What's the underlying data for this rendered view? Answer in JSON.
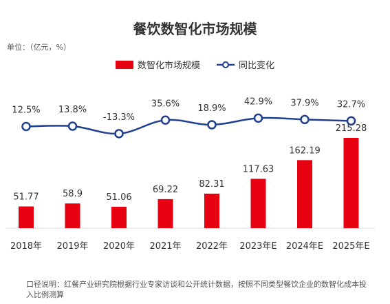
{
  "title": "餐饮数智化市场规模",
  "unit_label": "单位：（亿元，%）",
  "legend": {
    "bar_label": "数智化市场规模",
    "line_label": "同比变化"
  },
  "note": "口径说明：红餐产业研究院根据行业专家访谈和公开统计数据，按照不同类型餐饮企业的数智化成本投入比例测算",
  "colors": {
    "bar": "#e60012",
    "line": "#1f3f8f",
    "marker_fill": "#ffffff",
    "axis": "#d9d9d9",
    "text": "#333333"
  },
  "chart_data": {
    "type": "bar",
    "title": "餐饮数智化市场规模",
    "categories": [
      "2018年",
      "2019年",
      "2020年",
      "2021年",
      "2022年",
      "2023年E",
      "2024年E",
      "2025年E"
    ],
    "series": [
      {
        "name": "数智化市场规模",
        "type": "bar",
        "values": [
          51.77,
          58.9,
          51.06,
          69.22,
          82.31,
          117.63,
          162.19,
          215.28
        ],
        "labels": [
          "51.77",
          "58.9",
          "51.06",
          "69.22",
          "82.31",
          "117.63",
          "162.19",
          "215.28"
        ]
      },
      {
        "name": "同比变化",
        "type": "line",
        "values": [
          12.5,
          13.8,
          -13.3,
          35.6,
          18.9,
          42.9,
          37.9,
          32.7
        ],
        "labels": [
          "12.5%",
          "13.8%",
          "-13.3%",
          "35.6%",
          "18.9%",
          "42.9%",
          "37.9%",
          "32.7%"
        ]
      }
    ],
    "legend_position": "top-center",
    "grid": false
  }
}
